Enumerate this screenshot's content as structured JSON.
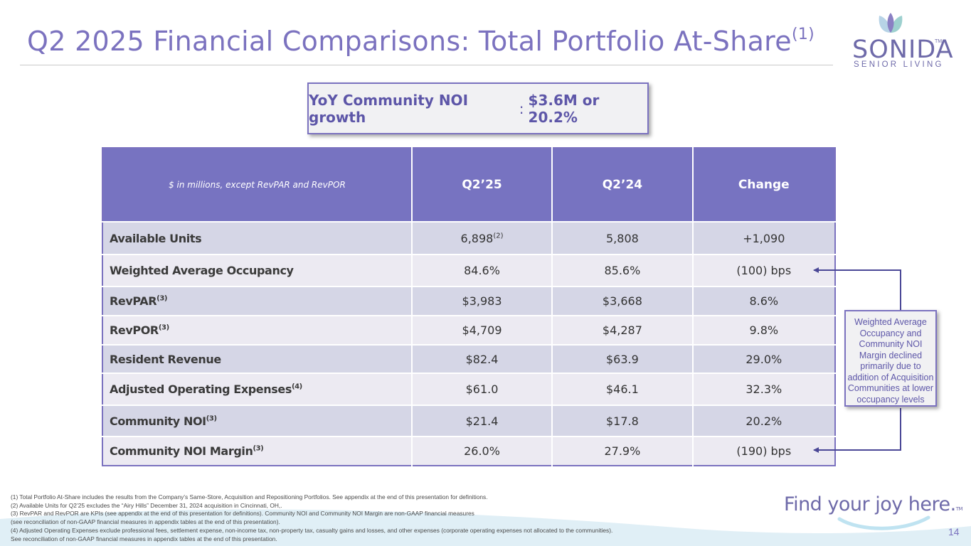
{
  "header": {
    "title": "Q2 2025 Financial Comparisons: Total Portfolio At-Share",
    "title_sup": "(1)"
  },
  "logo": {
    "word": "SONIDA",
    "tm": "TM",
    "sub": "SENIOR LIVING"
  },
  "callout": {
    "label": "YoY Community NOI growth",
    "colon": ":",
    "value": "$3.6M or 20.2%"
  },
  "table": {
    "header_note": "$ in millions, except RevPAR and RevPOR",
    "columns": [
      "Q2’25",
      "Q2’24",
      "Change"
    ],
    "rows": [
      {
        "label": "Available Units",
        "label_sup": "",
        "q2_25": "6,898",
        "q2_25_sup": "(2)",
        "q2_24": "5,808",
        "change": "+1,090"
      },
      {
        "label": "Weighted Average Occupancy",
        "label_sup": "",
        "q2_25": "84.6%",
        "q2_25_sup": "",
        "q2_24": "85.6%",
        "change": "(100) bps"
      },
      {
        "label": "RevPAR",
        "label_sup": "(3)",
        "q2_25": "$3,983",
        "q2_25_sup": "",
        "q2_24": "$3,668",
        "change": "8.6%"
      },
      {
        "label": "RevPOR",
        "label_sup": "(3)",
        "q2_25": "$4,709",
        "q2_25_sup": "",
        "q2_24": "$4,287",
        "change": "9.8%"
      },
      {
        "label": "Resident Revenue",
        "label_sup": "",
        "q2_25": "$82.4",
        "q2_25_sup": "",
        "q2_24": "$63.9",
        "change": "29.0%"
      },
      {
        "label": "Adjusted Operating Expenses",
        "label_sup": "(4)",
        "q2_25": "$61.0",
        "q2_25_sup": "",
        "q2_24": "$46.1",
        "change": "32.3%"
      },
      {
        "label": "Community NOI",
        "label_sup": "(3)",
        "q2_25": "$21.4",
        "q2_25_sup": "",
        "q2_24": "$17.8",
        "change": "20.2%"
      },
      {
        "label": "Community NOI Margin",
        "label_sup": "(3)",
        "q2_25": "26.0%",
        "q2_25_sup": "",
        "q2_24": "27.9%",
        "change": "(190) bps"
      }
    ]
  },
  "side_note": "Weighted Average Occupancy and Community NOI Margin declined primarily due to addition of Acquisition Communities at lower occupancy levels",
  "footnotes": [
    "(1) Total Portfolio At-Share includes the results from the Company’s Same-Store, Acquisition and Repositioning Portfolios.  See appendix at the end of this presentation for definitions.",
    "(2) Available Units for Q2’25 excludes the “Airy Hills” December 31, 2024 acquisition in Cincinnati, OH,.",
    "(3) RevPAR and RevPOR are KPIs (see appendix at the end of this presentation for definitions). Community NOI and  Community NOI Margin are  non-GAAP financial measures",
    "(see reconciliation of non-GAAP financial measures in appendix tables at the end of this presentation).",
    "(4) Adjusted Operating Expenses exclude professional fees, settlement expense, non-income tax, non-property tax, casualty gains and losses, and other expenses (corporate operating expenses not allocated to the communities).",
    "See reconciliation of non-GAAP financial measures in appendix tables at the end of this presentation."
  ],
  "tagline": "Find your joy here.",
  "tagline_tm": "TM",
  "page_number": "14",
  "colors": {
    "accent": "#7b72bf",
    "header_bg": "#7773c1",
    "row_dark": "#d5d6e6",
    "row_light": "#eceaf2",
    "wave": "#cfe7f2"
  }
}
